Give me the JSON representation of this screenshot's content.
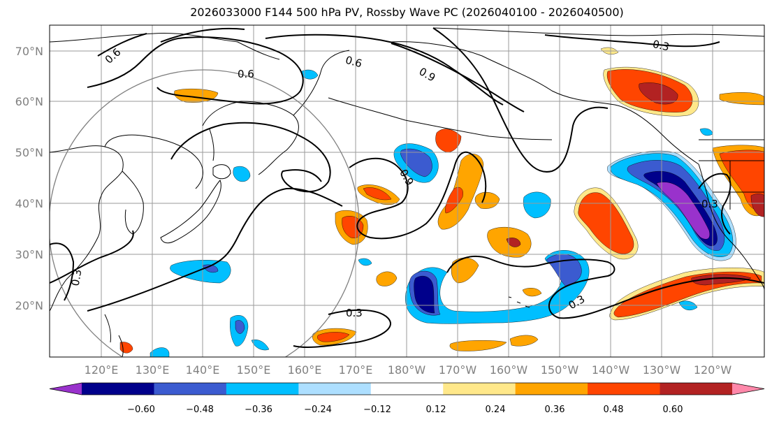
{
  "title": "2026033000 F144 500 hPa PV, Rossby Wave PC (2026040100 - 2026040500)",
  "lat_ticks": [
    "70°N",
    "60°N",
    "50°N",
    "40°N",
    "30°N",
    "20°N"
  ],
  "lon_ticks": [
    "120°E",
    "130°E",
    "140°E",
    "150°E",
    "160°E",
    "170°E",
    "180°W",
    "170°W",
    "160°W",
    "150°W",
    "140°W",
    "130°W",
    "120°W"
  ],
  "contour_labels": [
    "0.6",
    "0.6",
    "0.6",
    "0.9",
    "0.9",
    "0.3",
    "0.3",
    "0.3",
    "0.3",
    "0.3"
  ],
  "colorbar": {
    "ticks": [
      "−0.60",
      "−0.48",
      "−0.36",
      "−0.24",
      "−0.12",
      "0.12",
      "0.24",
      "0.36",
      "0.48",
      "0.60"
    ],
    "colors": [
      "#9932CC",
      "#00008B",
      "#3B5BD0",
      "#00BFFF",
      "#ADDFFF",
      "#FFFFFF",
      "#FFE88A",
      "#FFA500",
      "#FF4500",
      "#B22222",
      "#FF88AA"
    ]
  },
  "colors": {
    "purple": "#9932CC",
    "navy": "#00008B",
    "blue": "#3B5BD0",
    "cyan": "#00BFFF",
    "lightblue": "#ADDFFF",
    "yellow": "#FFE88A",
    "orange": "#FFA500",
    "red": "#FF4500",
    "darkred": "#B22222",
    "pink": "#FF88AA",
    "grid": "#9a9a9a",
    "circle": "#808080"
  }
}
